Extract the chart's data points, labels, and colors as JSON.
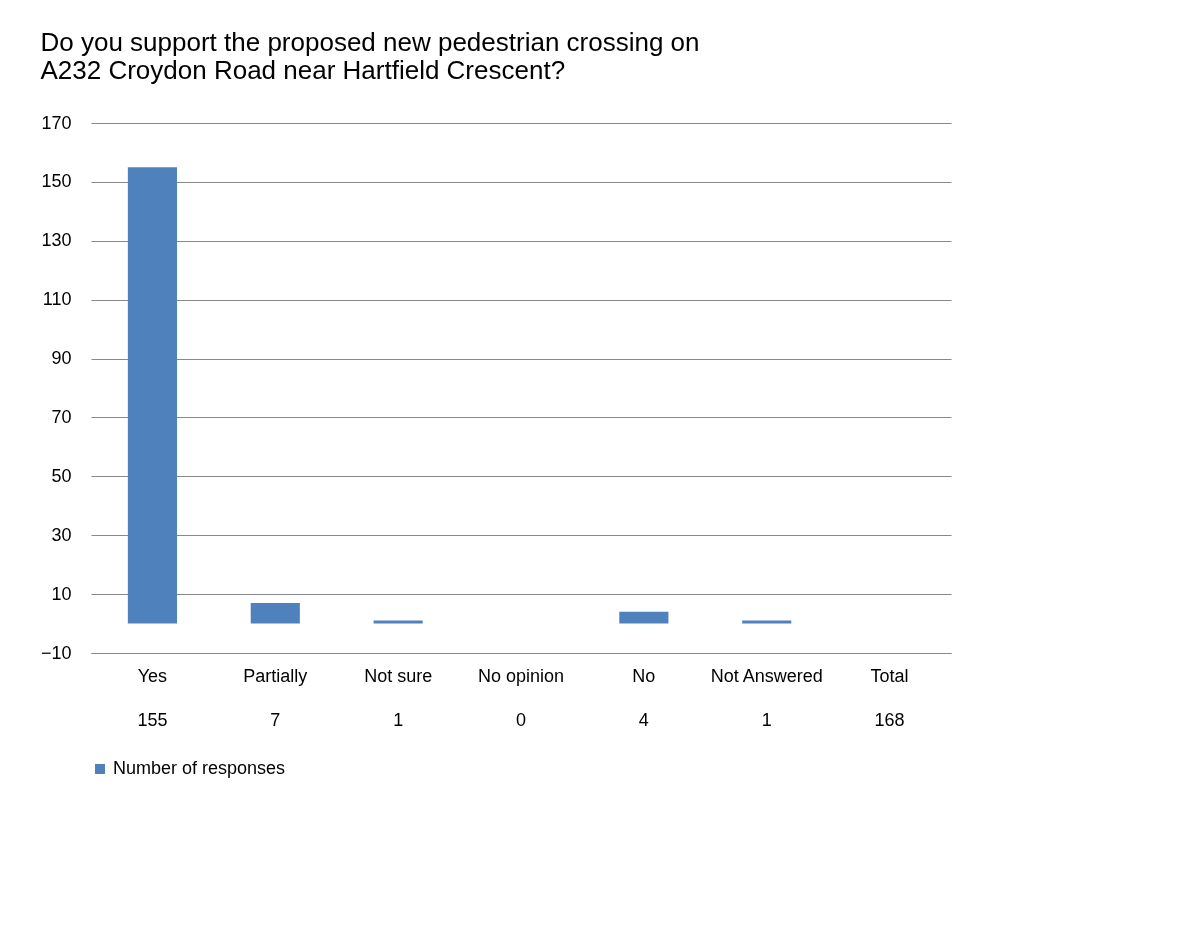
{
  "chart_data": {
    "type": "bar",
    "title": "Do you support the proposed new pedestrian crossing on A232 Croydon Road near Hartfield Crescent?",
    "categories": [
      "Yes",
      "Partially",
      "Not sure",
      "No opinion",
      "No",
      "Not Answered",
      "Total"
    ],
    "series": [
      {
        "name": "Number of responses",
        "color": "#4f81bd",
        "values": [
          155,
          7,
          1,
          0,
          4,
          1,
          null
        ],
        "value_labels": [
          "155",
          "7",
          "1",
          "0",
          "4",
          "1",
          "168"
        ]
      }
    ],
    "ylim": [
      -10,
      170
    ],
    "yticks": [
      -10,
      10,
      30,
      50,
      70,
      90,
      110,
      130,
      150,
      170
    ],
    "grid": "y",
    "legend": "bottom left"
  }
}
